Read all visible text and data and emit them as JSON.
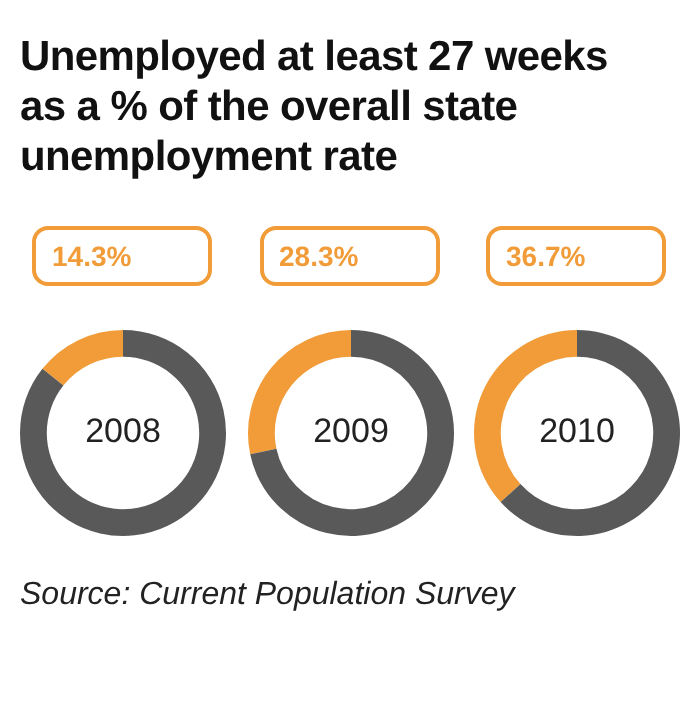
{
  "chart_data": [
    {
      "type": "donut",
      "title": "Unemployed at least 27 weeks as a % of the overall state unemployment rate",
      "categories": [
        null,
        null
      ],
      "values": [
        14.3,
        85.7
      ],
      "colors": [
        "#f19c38",
        "#595959"
      ],
      "value_labels": [
        "14.3%",
        null
      ],
      "annotations": [
        "2008"
      ]
    },
    {
      "type": "donut",
      "categories": [
        null,
        null
      ],
      "values": [
        28.3,
        71.7
      ],
      "colors": [
        "#f19c38",
        "#595959"
      ],
      "value_labels": [
        "28.3%",
        null
      ],
      "annotations": [
        "2009"
      ]
    },
    {
      "type": "donut",
      "categories": [
        null,
        null
      ],
      "values": [
        36.7,
        63.3
      ],
      "colors": [
        "#f19c38",
        "#595959"
      ],
      "value_labels": [
        "36.7%",
        null
      ],
      "annotations": [
        "2010",
        "Source: Current Population Survey"
      ]
    }
  ]
}
